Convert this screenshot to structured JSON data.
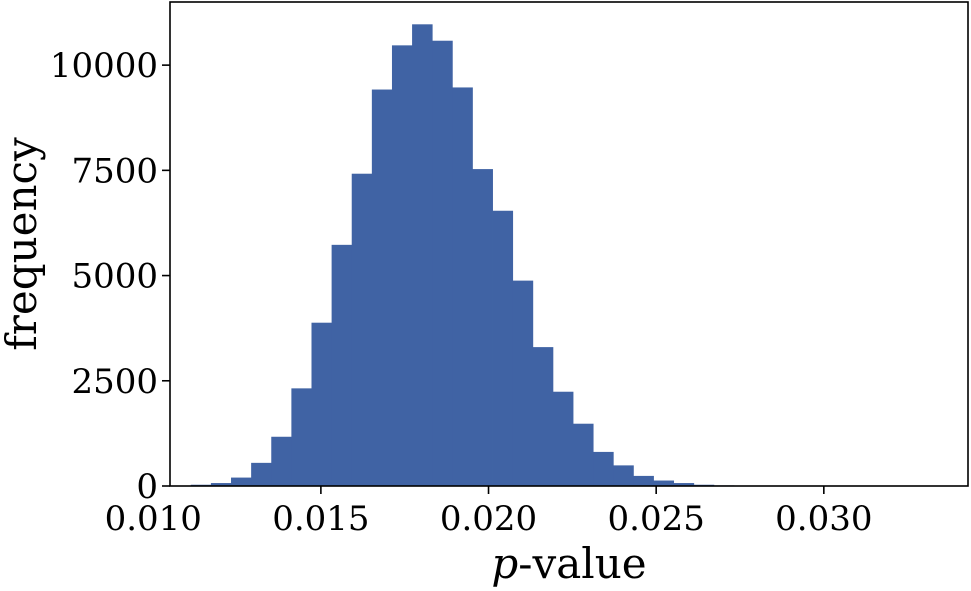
{
  "chart_data": {
    "type": "bar",
    "xlabel_var": "p",
    "xlabel_rest": "-value",
    "ylabel": "frequency",
    "xlim": [
      0.0105,
      0.0343
    ],
    "ylim": [
      0,
      11500
    ],
    "xticks": [
      0.01,
      0.015,
      0.02,
      0.025,
      0.03
    ],
    "xtick_labels": [
      "0.010",
      "0.015",
      "0.020",
      "0.025",
      "0.030"
    ],
    "yticks": [
      0,
      2500,
      5000,
      7500,
      10000
    ],
    "ytick_labels": [
      "0",
      "2500",
      "5000",
      "7500",
      "10000"
    ],
    "bar_color": "#4063a4",
    "grid": false,
    "bin_width": 0.0006,
    "bins": [
      {
        "x0": 0.01052,
        "value": 10
      },
      {
        "x0": 0.01112,
        "value": 30
      },
      {
        "x0": 0.01172,
        "value": 70
      },
      {
        "x0": 0.01232,
        "value": 200
      },
      {
        "x0": 0.01292,
        "value": 550
      },
      {
        "x0": 0.01352,
        "value": 1170
      },
      {
        "x0": 0.01412,
        "value": 2320
      },
      {
        "x0": 0.01472,
        "value": 3880
      },
      {
        "x0": 0.01532,
        "value": 5730
      },
      {
        "x0": 0.01592,
        "value": 7420
      },
      {
        "x0": 0.01652,
        "value": 9420
      },
      {
        "x0": 0.01712,
        "value": 10470
      },
      {
        "x0": 0.01772,
        "value": 10970
      },
      {
        "x0": 0.01832,
        "value": 10580
      },
      {
        "x0": 0.01892,
        "value": 9470
      },
      {
        "x0": 0.01952,
        "value": 7530
      },
      {
        "x0": 0.02012,
        "value": 6540
      },
      {
        "x0": 0.02072,
        "value": 4880
      },
      {
        "x0": 0.02132,
        "value": 3300
      },
      {
        "x0": 0.02192,
        "value": 2240
      },
      {
        "x0": 0.02252,
        "value": 1480
      },
      {
        "x0": 0.02312,
        "value": 810
      },
      {
        "x0": 0.02372,
        "value": 490
      },
      {
        "x0": 0.02432,
        "value": 240
      },
      {
        "x0": 0.02492,
        "value": 130
      },
      {
        "x0": 0.02552,
        "value": 70
      },
      {
        "x0": 0.02612,
        "value": 30
      },
      {
        "x0": 0.02672,
        "value": 15
      },
      {
        "x0": 0.02732,
        "value": 5
      }
    ]
  }
}
